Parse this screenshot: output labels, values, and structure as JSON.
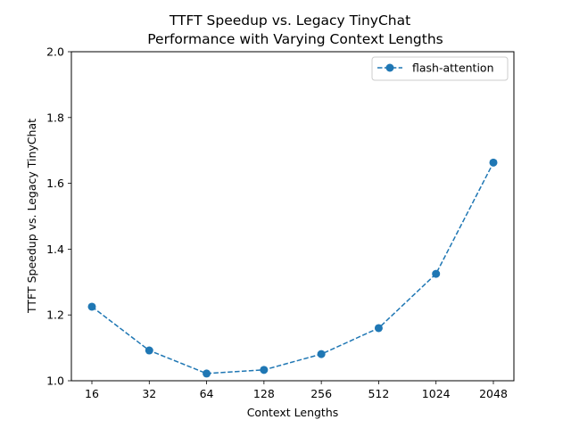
{
  "chart_data": {
    "type": "line",
    "title_line1": "TTFT Speedup vs. Legacy TinyChat",
    "title_line2": "Performance with Varying Context Lengths",
    "xlabel": "Context Lengths",
    "ylabel": "TTFT Speedup vs. Legacy TinyChat",
    "categories": [
      "16",
      "32",
      "64",
      "128",
      "256",
      "512",
      "1024",
      "2048"
    ],
    "series": [
      {
        "name": "flash-attention",
        "values": [
          1.225,
          1.092,
          1.022,
          1.033,
          1.081,
          1.16,
          1.325,
          1.663
        ],
        "color": "#1f77b4",
        "line_style": "dashed",
        "marker": "circle"
      }
    ],
    "ylim": [
      1.0,
      2.0
    ],
    "yticks": [
      "1.0",
      "1.2",
      "1.4",
      "1.6",
      "1.8",
      "2.0"
    ],
    "grid": false,
    "legend_position": "top-right"
  }
}
